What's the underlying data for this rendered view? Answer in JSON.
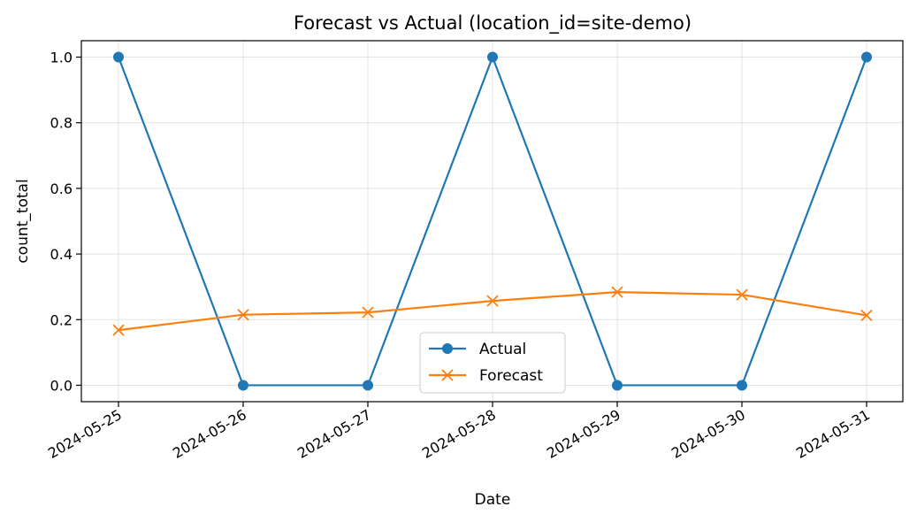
{
  "chart_data": {
    "type": "line",
    "title": "Forecast vs Actual (location_id=site-demo)",
    "xlabel": "Date",
    "ylabel": "count_total",
    "categories": [
      "2024-05-25",
      "2024-05-26",
      "2024-05-27",
      "2024-05-28",
      "2024-05-29",
      "2024-05-30",
      "2024-05-31"
    ],
    "yticks": [
      "0.0",
      "0.2",
      "0.4",
      "0.6",
      "0.8",
      "1.0"
    ],
    "ylim": [
      -0.05,
      1.05
    ],
    "grid": true,
    "legend_position": "lower center",
    "series": [
      {
        "name": "Actual",
        "color": "#1f77b4",
        "marker": "circle",
        "values": [
          1.0,
          0.0,
          0.0,
          1.0,
          0.0,
          0.0,
          1.0
        ]
      },
      {
        "name": "Forecast",
        "color": "#ff7f0e",
        "marker": "x",
        "values": [
          0.168,
          0.215,
          0.222,
          0.257,
          0.284,
          0.276,
          0.213
        ]
      }
    ]
  }
}
